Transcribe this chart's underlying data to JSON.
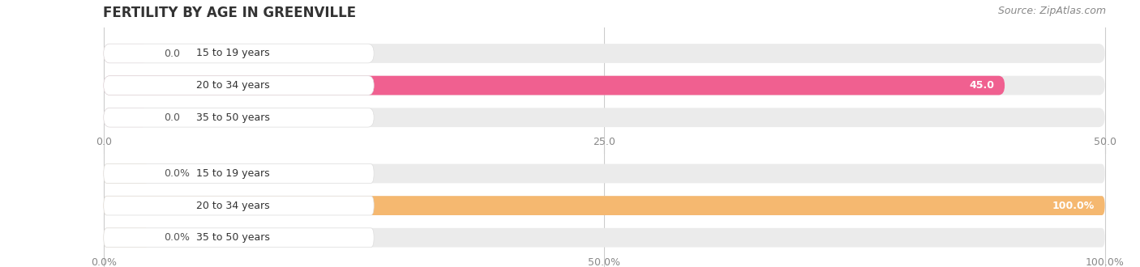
{
  "title": "FERTILITY BY AGE IN GREENVILLE",
  "source": "Source: ZipAtlas.com",
  "top_chart": {
    "categories": [
      "15 to 19 years",
      "20 to 34 years",
      "35 to 50 years"
    ],
    "values": [
      0.0,
      45.0,
      0.0
    ],
    "max_val": 50.0,
    "xlim": [
      0,
      50
    ],
    "xticks": [
      0.0,
      25.0,
      50.0
    ],
    "xtick_labels": [
      "0.0",
      "25.0",
      "50.0"
    ],
    "bar_color": "#f06090",
    "bar_color_light": "#f5aac0",
    "bg_color": "#ebebeb",
    "white_label_bg": "#ffffff"
  },
  "bottom_chart": {
    "categories": [
      "15 to 19 years",
      "20 to 34 years",
      "35 to 50 years"
    ],
    "values": [
      0.0,
      100.0,
      0.0
    ],
    "max_val": 100.0,
    "xlim": [
      0,
      100
    ],
    "xticks": [
      0.0,
      50.0,
      100.0
    ],
    "xtick_labels": [
      "0.0%",
      "50.0%",
      "100.0%"
    ],
    "bar_color": "#f5b870",
    "bar_color_light": "#f8d4a8",
    "bg_color": "#ebebeb",
    "white_label_bg": "#ffffff"
  },
  "title_fontsize": 12,
  "source_fontsize": 9,
  "label_fontsize": 9,
  "value_fontsize": 9,
  "tick_fontsize": 9,
  "background_color": "#ffffff"
}
